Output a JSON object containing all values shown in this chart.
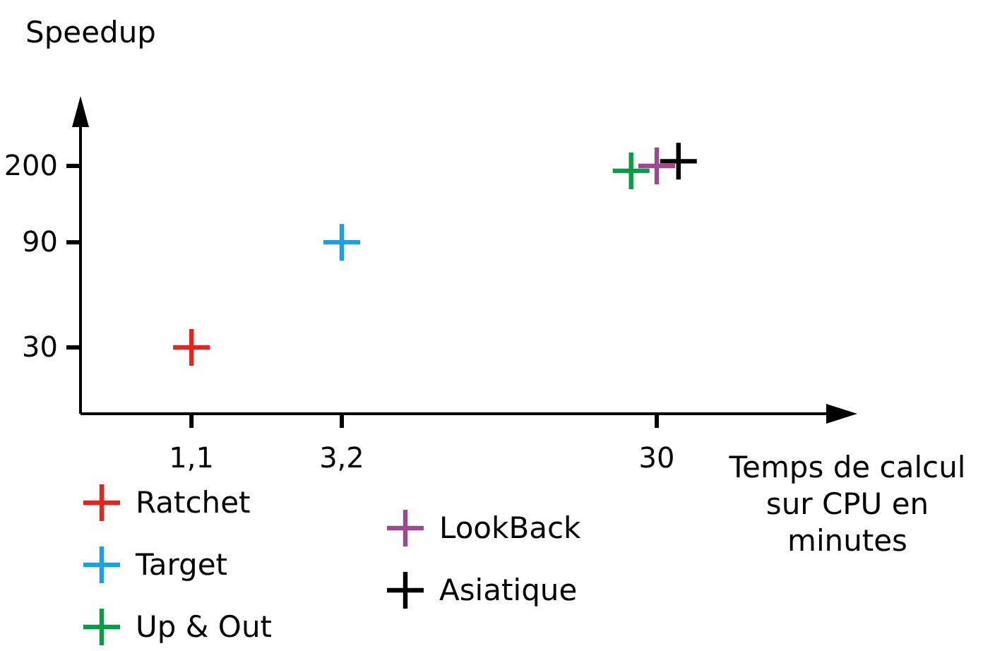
{
  "chart_data": {
    "type": "scatter",
    "xlabel": "Temps de calcul sur CPU en minutes",
    "ylabel": "Speedup",
    "log": "xy",
    "xlim": [
      0.5,
      100
    ],
    "ylim": [
      15,
      300
    ],
    "xticks": [
      {
        "value": 1.1,
        "label": "1,1"
      },
      {
        "value": 3.2,
        "label": "3,2"
      },
      30
    ],
    "yticks": [
      30,
      90,
      200
    ],
    "marker": "cross",
    "legend": "bottom",
    "grid": false,
    "series": [
      {
        "name": "Ratchet",
        "color": "#e0261f",
        "x": [
          1.1
        ],
        "values": [
          30
        ]
      },
      {
        "name": "Target",
        "color": "#1e9fe0",
        "x": [
          3.2
        ],
        "values": [
          90
        ]
      },
      {
        "name": "Up & Out",
        "color": "#0a9a4a",
        "x": [
          25
        ],
        "values": [
          190
        ]
      },
      {
        "name": "LookBack",
        "color": "#9b4a8a",
        "x": [
          30
        ],
        "values": [
          200
        ]
      },
      {
        "name": "Asiatique",
        "color": "#000000",
        "x": [
          35
        ],
        "values": [
          210
        ]
      }
    ]
  }
}
